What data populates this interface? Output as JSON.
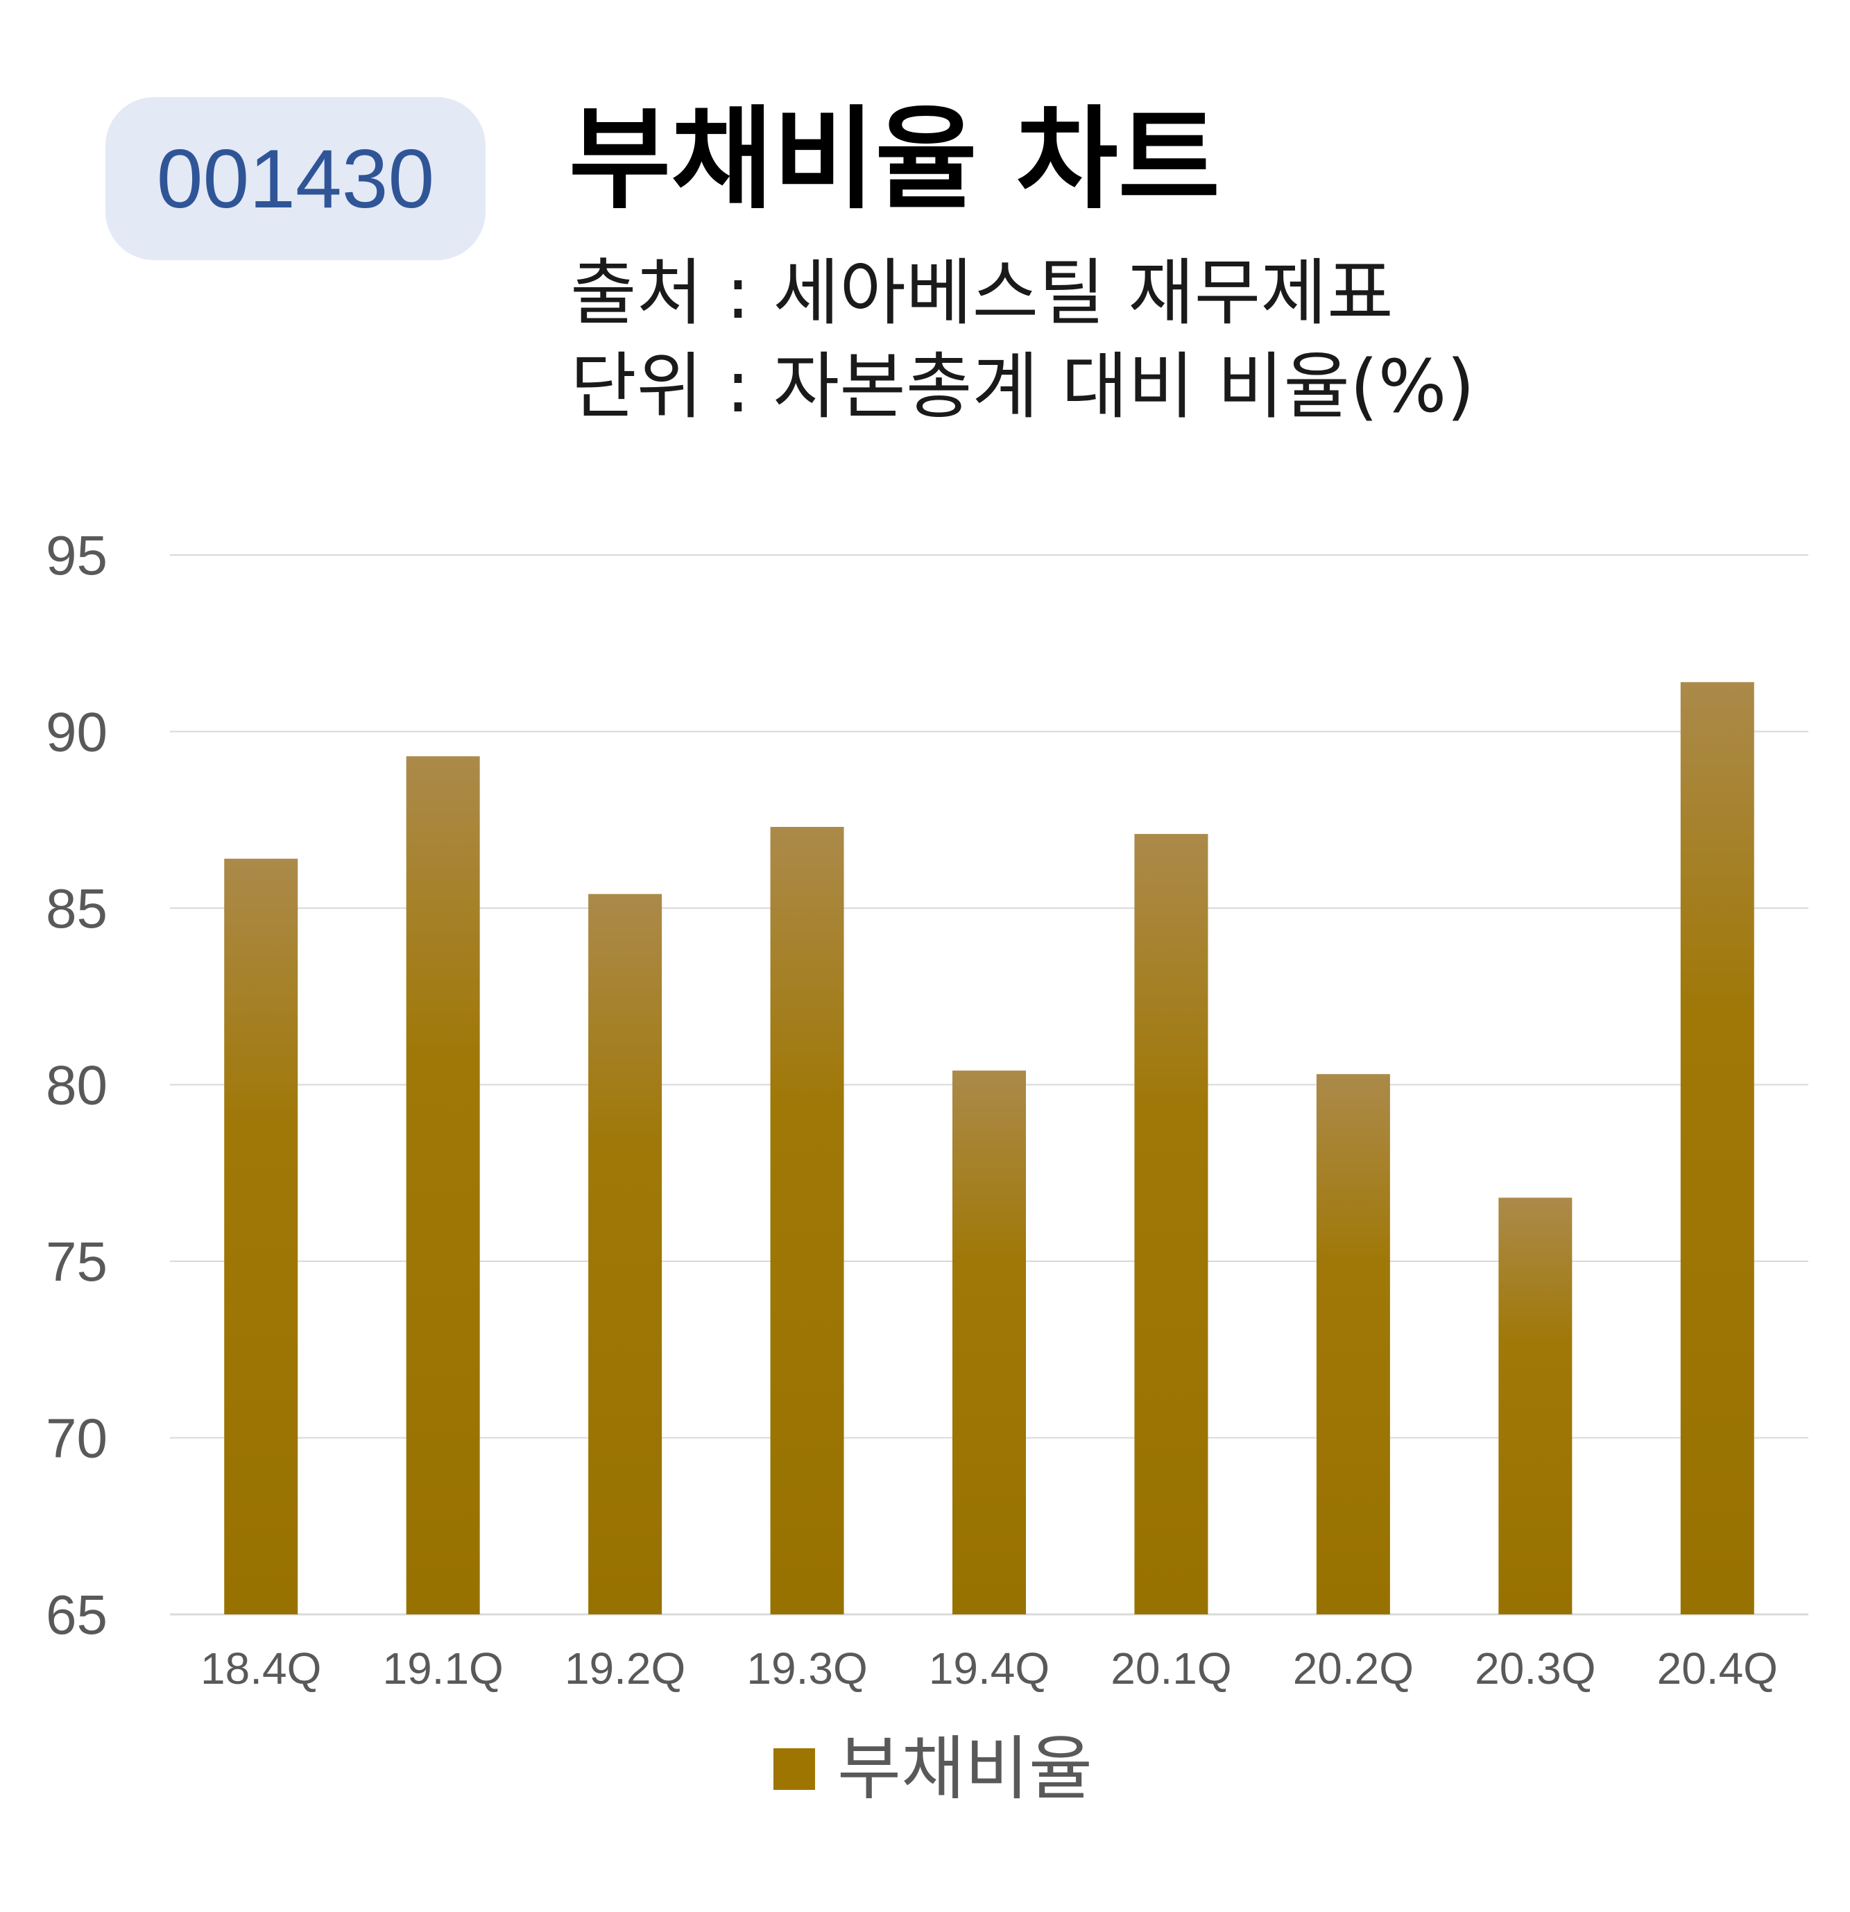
{
  "badge": {
    "code": "001430"
  },
  "header": {
    "title": "부채비율 차트",
    "source": "출처 : 세아베스틸 재무제표",
    "unit": "단위 : 자본총계 대비 비율(%)"
  },
  "colors": {
    "bar": "#9e7500",
    "bar_top": "#ab8a4a",
    "grid": "#d9d9d9",
    "badge_bg": "#e3e9f5",
    "badge_text": "#2f5597"
  },
  "chart_data": {
    "type": "bar",
    "categories": [
      "18.4Q",
      "19.1Q",
      "19.2Q",
      "19.3Q",
      "19.4Q",
      "20.1Q",
      "20.2Q",
      "20.3Q",
      "20.4Q"
    ],
    "series": [
      {
        "name": "부채비율",
        "values": [
          86.4,
          89.3,
          85.4,
          87.3,
          80.4,
          87.1,
          80.3,
          76.8,
          91.4
        ]
      }
    ],
    "ylim": [
      65,
      95
    ],
    "yticks": [
      "65",
      "70",
      "75",
      "80",
      "85",
      "90",
      "95"
    ],
    "grid": true,
    "legend": "bottom"
  }
}
